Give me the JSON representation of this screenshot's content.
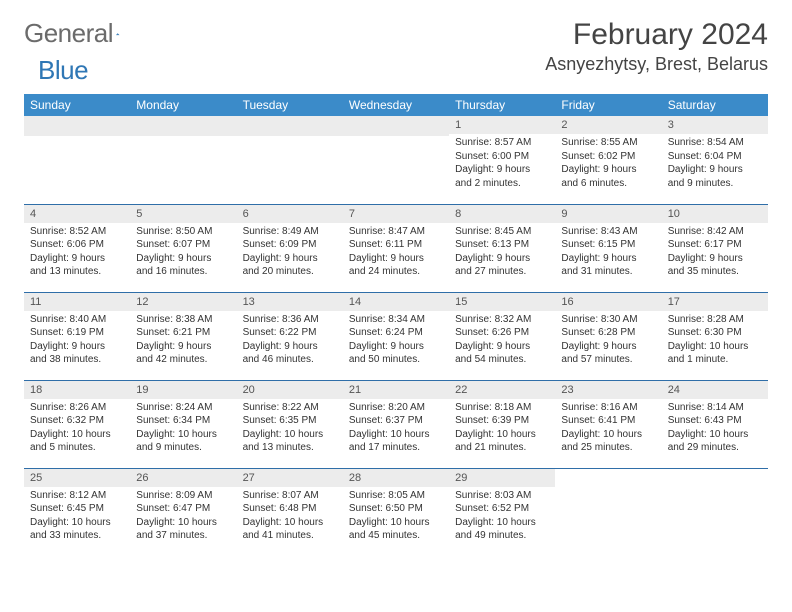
{
  "brand": {
    "word1": "General",
    "word2": "Blue"
  },
  "title": "February 2024",
  "location": "Asnyezhytsy, Brest, Belarus",
  "colors": {
    "header_bg": "#3b8bc9",
    "header_text": "#ffffff",
    "row_divider": "#2f6ea8",
    "daynum_bg": "#ececec",
    "text": "#333333",
    "brand_gray": "#6b6b6b",
    "brand_blue": "#2f77b5"
  },
  "day_names": [
    "Sunday",
    "Monday",
    "Tuesday",
    "Wednesday",
    "Thursday",
    "Friday",
    "Saturday"
  ],
  "weeks": [
    [
      null,
      null,
      null,
      null,
      {
        "n": "1",
        "sr": "8:57 AM",
        "ss": "6:00 PM",
        "dl": "9 hours and 2 minutes."
      },
      {
        "n": "2",
        "sr": "8:55 AM",
        "ss": "6:02 PM",
        "dl": "9 hours and 6 minutes."
      },
      {
        "n": "3",
        "sr": "8:54 AM",
        "ss": "6:04 PM",
        "dl": "9 hours and 9 minutes."
      }
    ],
    [
      {
        "n": "4",
        "sr": "8:52 AM",
        "ss": "6:06 PM",
        "dl": "9 hours and 13 minutes."
      },
      {
        "n": "5",
        "sr": "8:50 AM",
        "ss": "6:07 PM",
        "dl": "9 hours and 16 minutes."
      },
      {
        "n": "6",
        "sr": "8:49 AM",
        "ss": "6:09 PM",
        "dl": "9 hours and 20 minutes."
      },
      {
        "n": "7",
        "sr": "8:47 AM",
        "ss": "6:11 PM",
        "dl": "9 hours and 24 minutes."
      },
      {
        "n": "8",
        "sr": "8:45 AM",
        "ss": "6:13 PM",
        "dl": "9 hours and 27 minutes."
      },
      {
        "n": "9",
        "sr": "8:43 AM",
        "ss": "6:15 PM",
        "dl": "9 hours and 31 minutes."
      },
      {
        "n": "10",
        "sr": "8:42 AM",
        "ss": "6:17 PM",
        "dl": "9 hours and 35 minutes."
      }
    ],
    [
      {
        "n": "11",
        "sr": "8:40 AM",
        "ss": "6:19 PM",
        "dl": "9 hours and 38 minutes."
      },
      {
        "n": "12",
        "sr": "8:38 AM",
        "ss": "6:21 PM",
        "dl": "9 hours and 42 minutes."
      },
      {
        "n": "13",
        "sr": "8:36 AM",
        "ss": "6:22 PM",
        "dl": "9 hours and 46 minutes."
      },
      {
        "n": "14",
        "sr": "8:34 AM",
        "ss": "6:24 PM",
        "dl": "9 hours and 50 minutes."
      },
      {
        "n": "15",
        "sr": "8:32 AM",
        "ss": "6:26 PM",
        "dl": "9 hours and 54 minutes."
      },
      {
        "n": "16",
        "sr": "8:30 AM",
        "ss": "6:28 PM",
        "dl": "9 hours and 57 minutes."
      },
      {
        "n": "17",
        "sr": "8:28 AM",
        "ss": "6:30 PM",
        "dl": "10 hours and 1 minute."
      }
    ],
    [
      {
        "n": "18",
        "sr": "8:26 AM",
        "ss": "6:32 PM",
        "dl": "10 hours and 5 minutes."
      },
      {
        "n": "19",
        "sr": "8:24 AM",
        "ss": "6:34 PM",
        "dl": "10 hours and 9 minutes."
      },
      {
        "n": "20",
        "sr": "8:22 AM",
        "ss": "6:35 PM",
        "dl": "10 hours and 13 minutes."
      },
      {
        "n": "21",
        "sr": "8:20 AM",
        "ss": "6:37 PM",
        "dl": "10 hours and 17 minutes."
      },
      {
        "n": "22",
        "sr": "8:18 AM",
        "ss": "6:39 PM",
        "dl": "10 hours and 21 minutes."
      },
      {
        "n": "23",
        "sr": "8:16 AM",
        "ss": "6:41 PM",
        "dl": "10 hours and 25 minutes."
      },
      {
        "n": "24",
        "sr": "8:14 AM",
        "ss": "6:43 PM",
        "dl": "10 hours and 29 minutes."
      }
    ],
    [
      {
        "n": "25",
        "sr": "8:12 AM",
        "ss": "6:45 PM",
        "dl": "10 hours and 33 minutes."
      },
      {
        "n": "26",
        "sr": "8:09 AM",
        "ss": "6:47 PM",
        "dl": "10 hours and 37 minutes."
      },
      {
        "n": "27",
        "sr": "8:07 AM",
        "ss": "6:48 PM",
        "dl": "10 hours and 41 minutes."
      },
      {
        "n": "28",
        "sr": "8:05 AM",
        "ss": "6:50 PM",
        "dl": "10 hours and 45 minutes."
      },
      {
        "n": "29",
        "sr": "8:03 AM",
        "ss": "6:52 PM",
        "dl": "10 hours and 49 minutes."
      },
      null,
      null
    ]
  ],
  "labels": {
    "sunrise": "Sunrise:",
    "sunset": "Sunset:",
    "daylight": "Daylight:"
  }
}
